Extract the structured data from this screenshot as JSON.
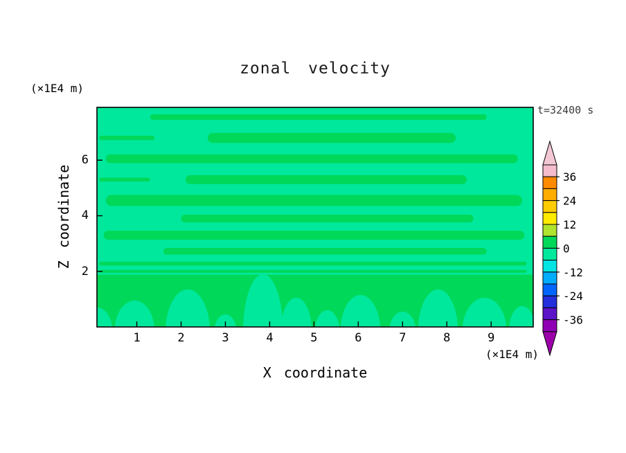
{
  "title": "zonal velocity",
  "annotations": {
    "time_label": "t=32400 s",
    "y_units_label": "(×1E4 m)",
    "x_units_label": "(×1E4 m)"
  },
  "axes": {
    "x": {
      "label": "X coordinate",
      "ticks": [
        1,
        2,
        3,
        4,
        5,
        6,
        7,
        8,
        9
      ],
      "range": [
        0.1,
        9.95
      ]
    },
    "y": {
      "label": "Z coordinate",
      "ticks": [
        2,
        4,
        6
      ],
      "range": [
        0,
        7.9
      ]
    }
  },
  "colorbar": {
    "labels": [
      36,
      24,
      12,
      0,
      -12,
      -24,
      -36
    ],
    "segment_colors_top_to_bottom": [
      "#F4BCCD",
      "#FF8A00",
      "#FFAC00",
      "#FFCC00",
      "#FFEA00",
      "#B0E42E",
      "#00D85A",
      "#00E89C",
      "#00E4E4",
      "#00ACFF",
      "#0066FF",
      "#2430DC",
      "#5C14C8",
      "#8F00B4"
    ],
    "arrow_top_color": "#F2C8D4",
    "arrow_bottom_color": "#9C00A8",
    "contour_interval": 6
  },
  "chart_data": {
    "type": "heatmap",
    "subtype": "filled_contour",
    "title": "zonal velocity",
    "xlabel": "X coordinate",
    "ylabel": "Z coordinate",
    "x_units": "×1E4 m",
    "y_units": "×1E4 m",
    "time_annotation": "t=32400 s",
    "xlim": [
      0.1,
      9.95
    ],
    "ylim": [
      0,
      7.9
    ],
    "x_ticks": [
      1,
      2,
      3,
      4,
      5,
      6,
      7,
      8,
      9
    ],
    "y_ticks": [
      2,
      4,
      6
    ],
    "levels": [
      -42,
      -36,
      -30,
      -24,
      -18,
      -12,
      -6,
      0,
      6,
      12,
      18,
      24,
      30,
      36,
      42
    ],
    "visible_value_range": [
      -6,
      6
    ],
    "field_colors": {
      "positive_0_to_6": "#00D85A",
      "negative_-6_to_0": "#00E89C"
    },
    "field_summary": "Weak zonal velocity field: horizontally banded positive stripes (0..6) over a negative (-6..0) background aloft; a positive layer below z≈1.9 with negative plumes rising from the surface.",
    "positive_bands_z_hh_x0_x1": [
      [
        7.55,
        0.1,
        1.3,
        8.9
      ],
      [
        6.8,
        0.18,
        2.6,
        8.2
      ],
      [
        6.8,
        0.08,
        0.15,
        1.4
      ],
      [
        6.05,
        0.16,
        0.3,
        9.6
      ],
      [
        5.3,
        0.16,
        2.1,
        8.45
      ],
      [
        5.3,
        0.07,
        0.15,
        1.3
      ],
      [
        4.55,
        0.2,
        0.3,
        9.7
      ],
      [
        3.9,
        0.14,
        2.0,
        8.6
      ],
      [
        3.3,
        0.16,
        0.25,
        9.75
      ],
      [
        2.72,
        0.12,
        1.6,
        8.9
      ],
      [
        2.28,
        0.07,
        0.15,
        9.8
      ],
      [
        2.0,
        0.05,
        0.15,
        9.8
      ]
    ],
    "bottom_positive_layer_top_z": 1.88,
    "negative_bottom_blobs_cx_rx_ry": [
      [
        0.1,
        0.35,
        0.85
      ],
      [
        0.95,
        0.45,
        1.1
      ],
      [
        2.15,
        0.5,
        1.5
      ],
      [
        3.0,
        0.25,
        0.6
      ],
      [
        3.85,
        0.45,
        2.05
      ],
      [
        4.6,
        0.35,
        1.2
      ],
      [
        5.3,
        0.28,
        0.75
      ],
      [
        6.05,
        0.45,
        1.3
      ],
      [
        7.0,
        0.3,
        0.7
      ],
      [
        7.8,
        0.45,
        1.5
      ],
      [
        8.85,
        0.5,
        1.2
      ],
      [
        9.7,
        0.3,
        0.9
      ]
    ]
  }
}
